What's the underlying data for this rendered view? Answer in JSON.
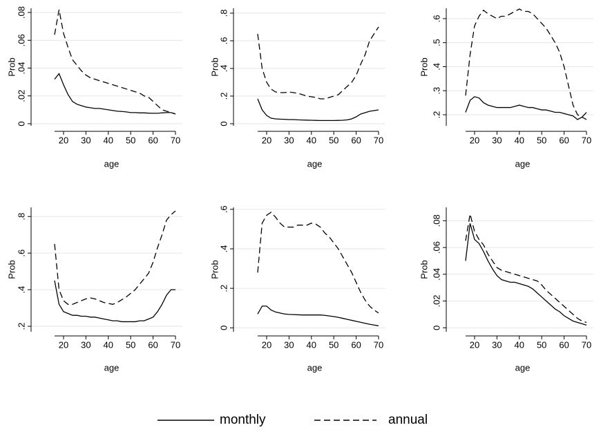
{
  "chart_data": [
    {
      "type": "line",
      "xlabel": "age",
      "ylabel": "Prob",
      "x": [
        16,
        18,
        20,
        22,
        24,
        26,
        28,
        30,
        32,
        34,
        36,
        38,
        40,
        42,
        44,
        46,
        48,
        50,
        52,
        54,
        56,
        58,
        60,
        62,
        64,
        66,
        68,
        70
      ],
      "xlim": [
        16,
        70
      ],
      "xticks": [
        20,
        30,
        40,
        50,
        60,
        70
      ],
      "ylim": [
        -0.0015,
        0.083
      ],
      "yticks": [
        0,
        {
          "value": 0.02,
          "label": ".02"
        },
        {
          "value": 0.04,
          "label": ".04"
        },
        {
          "value": 0.06,
          "label": ".06"
        },
        {
          "value": 0.08,
          "label": ".08"
        }
      ],
      "grid": true,
      "series": [
        {
          "name": "monthly",
          "color": "#000000",
          "dash": "solid",
          "values": [
            0.032,
            0.036,
            0.028,
            0.021,
            0.016,
            0.014,
            0.013,
            0.012,
            0.0115,
            0.011,
            0.011,
            0.0105,
            0.01,
            0.0095,
            0.009,
            0.0088,
            0.0085,
            0.008,
            0.008,
            0.0078,
            0.0078,
            0.0076,
            0.0075,
            0.0075,
            0.0078,
            0.008,
            0.008,
            0.007
          ]
        },
        {
          "name": "annual",
          "color": "#000000",
          "dash": "dashed",
          "values": [
            0.064,
            0.082,
            0.065,
            0.055,
            0.046,
            0.042,
            0.038,
            0.035,
            0.033,
            0.032,
            0.031,
            0.03,
            0.029,
            0.028,
            0.027,
            0.026,
            0.025,
            0.024,
            0.023,
            0.022,
            0.02,
            0.019,
            0.016,
            0.013,
            0.01,
            0.009,
            0.008,
            0.007
          ]
        }
      ]
    },
    {
      "type": "line",
      "xlabel": "age",
      "ylabel": "Prob",
      "x": [
        16,
        18,
        20,
        22,
        24,
        26,
        28,
        30,
        32,
        34,
        36,
        38,
        40,
        42,
        44,
        46,
        48,
        50,
        52,
        54,
        56,
        58,
        60,
        62,
        64,
        66,
        68,
        70
      ],
      "xlim": [
        16,
        70
      ],
      "xticks": [
        20,
        30,
        40,
        50,
        60,
        70
      ],
      "ylim": [
        -0.015,
        0.835
      ],
      "yticks": [
        0,
        {
          "value": 0.2,
          "label": ".2"
        },
        {
          "value": 0.4,
          "label": ".4"
        },
        {
          "value": 0.6,
          "label": ".6"
        },
        {
          "value": 0.8,
          "label": ".8"
        }
      ],
      "grid": true,
      "series": [
        {
          "color": "#000000",
          "dash": "solid",
          "values": [
            0.18,
            0.1,
            0.06,
            0.04,
            0.035,
            0.033,
            0.032,
            0.03,
            0.03,
            0.028,
            0.027,
            0.026,
            0.025,
            0.024,
            0.023,
            0.023,
            0.023,
            0.023,
            0.024,
            0.025,
            0.028,
            0.035,
            0.05,
            0.07,
            0.08,
            0.09,
            0.095,
            0.1
          ]
        },
        {
          "color": "#000000",
          "dash": "dashed",
          "values": [
            0.65,
            0.4,
            0.3,
            0.25,
            0.23,
            0.225,
            0.225,
            0.23,
            0.225,
            0.22,
            0.21,
            0.2,
            0.195,
            0.19,
            0.18,
            0.18,
            0.19,
            0.2,
            0.21,
            0.24,
            0.27,
            0.3,
            0.35,
            0.43,
            0.5,
            0.6,
            0.65,
            0.7
          ]
        }
      ]
    },
    {
      "type": "line",
      "xlabel": "age",
      "ylabel": "Prob",
      "x": [
        16,
        18,
        20,
        22,
        24,
        26,
        28,
        30,
        32,
        34,
        36,
        38,
        40,
        42,
        44,
        46,
        48,
        50,
        52,
        54,
        56,
        58,
        60,
        62,
        64,
        66,
        68,
        70
      ],
      "xlim": [
        16,
        70
      ],
      "xticks": [
        20,
        30,
        40,
        50,
        60,
        70
      ],
      "ylim": [
        0.154,
        0.643
      ],
      "yticks": [
        {
          "value": 0.2,
          "label": ".2"
        },
        {
          "value": 0.3,
          "label": ".3"
        },
        {
          "value": 0.4,
          "label": ".4"
        },
        {
          "value": 0.5,
          "label": ".5"
        },
        {
          "value": 0.6,
          "label": ".6"
        }
      ],
      "grid": true,
      "series": [
        {
          "color": "#000000",
          "dash": "solid",
          "values": [
            0.21,
            0.26,
            0.275,
            0.27,
            0.25,
            0.24,
            0.235,
            0.23,
            0.23,
            0.23,
            0.23,
            0.235,
            0.24,
            0.235,
            0.23,
            0.23,
            0.225,
            0.22,
            0.22,
            0.215,
            0.21,
            0.21,
            0.205,
            0.2,
            0.195,
            0.18,
            0.19,
            0.21
          ]
        },
        {
          "color": "#000000",
          "dash": "dashed",
          "values": [
            0.28,
            0.45,
            0.57,
            0.61,
            0.635,
            0.62,
            0.61,
            0.6,
            0.61,
            0.61,
            0.62,
            0.63,
            0.64,
            0.63,
            0.63,
            0.62,
            0.6,
            0.58,
            0.56,
            0.53,
            0.5,
            0.46,
            0.4,
            0.32,
            0.24,
            0.2,
            0.19,
            0.18
          ]
        }
      ]
    },
    {
      "type": "line",
      "xlabel": "age",
      "ylabel": "Prob",
      "x": [
        16,
        18,
        20,
        22,
        24,
        26,
        28,
        30,
        32,
        34,
        36,
        38,
        40,
        42,
        44,
        46,
        48,
        50,
        52,
        54,
        56,
        58,
        60,
        62,
        64,
        66,
        68,
        70
      ],
      "xlim": [
        16,
        70
      ],
      "xticks": [
        20,
        30,
        40,
        50,
        60,
        70
      ],
      "ylim": [
        0.17,
        0.85
      ],
      "yticks": [
        {
          "value": 0.2,
          "label": ".2"
        },
        {
          "value": 0.4,
          "label": ".4"
        },
        {
          "value": 0.6,
          "label": ".6"
        },
        {
          "value": 0.8,
          "label": ".8"
        }
      ],
      "grid": true,
      "series": [
        {
          "color": "#000000",
          "dash": "solid",
          "values": [
            0.45,
            0.32,
            0.28,
            0.27,
            0.26,
            0.26,
            0.255,
            0.255,
            0.25,
            0.25,
            0.245,
            0.24,
            0.235,
            0.23,
            0.23,
            0.225,
            0.225,
            0.225,
            0.225,
            0.23,
            0.23,
            0.24,
            0.25,
            0.28,
            0.32,
            0.37,
            0.4,
            0.4
          ]
        },
        {
          "color": "#000000",
          "dash": "dashed",
          "values": [
            0.65,
            0.4,
            0.34,
            0.32,
            0.32,
            0.33,
            0.34,
            0.35,
            0.355,
            0.35,
            0.34,
            0.33,
            0.325,
            0.32,
            0.33,
            0.345,
            0.36,
            0.38,
            0.4,
            0.43,
            0.46,
            0.49,
            0.55,
            0.63,
            0.7,
            0.78,
            0.81,
            0.83
          ]
        }
      ]
    },
    {
      "type": "line",
      "xlabel": "age",
      "ylabel": "Prob",
      "x": [
        16,
        18,
        20,
        22,
        24,
        26,
        28,
        30,
        32,
        34,
        36,
        38,
        40,
        42,
        44,
        46,
        48,
        50,
        52,
        54,
        56,
        58,
        60,
        62,
        64,
        66,
        68,
        70
      ],
      "xlim": [
        16,
        70
      ],
      "xticks": [
        20,
        30,
        40,
        50,
        60,
        70
      ],
      "ylim": [
        -0.02,
        0.61
      ],
      "yticks": [
        0,
        {
          "value": 0.2,
          "label": ".2"
        },
        {
          "value": 0.4,
          "label": ".4"
        },
        {
          "value": 0.6,
          "label": ".6"
        }
      ],
      "grid": true,
      "series": [
        {
          "color": "#000000",
          "dash": "solid",
          "values": [
            0.07,
            0.11,
            0.11,
            0.09,
            0.08,
            0.075,
            0.07,
            0.068,
            0.067,
            0.066,
            0.065,
            0.065,
            0.065,
            0.065,
            0.065,
            0.063,
            0.06,
            0.057,
            0.053,
            0.048,
            0.043,
            0.038,
            0.033,
            0.028,
            0.023,
            0.018,
            0.014,
            0.01
          ]
        },
        {
          "color": "#000000",
          "dash": "dashed",
          "values": [
            0.28,
            0.53,
            0.57,
            0.585,
            0.56,
            0.53,
            0.51,
            0.51,
            0.51,
            0.52,
            0.52,
            0.52,
            0.53,
            0.525,
            0.51,
            0.48,
            0.46,
            0.43,
            0.4,
            0.36,
            0.32,
            0.28,
            0.23,
            0.18,
            0.14,
            0.11,
            0.09,
            0.075
          ]
        }
      ]
    },
    {
      "type": "line",
      "xlabel": "age",
      "ylabel": "Prob",
      "x": [
        16,
        18,
        20,
        22,
        24,
        26,
        28,
        30,
        32,
        34,
        36,
        38,
        40,
        42,
        44,
        46,
        48,
        50,
        52,
        54,
        56,
        58,
        60,
        62,
        64,
        66,
        68,
        70
      ],
      "xlim": [
        16,
        70
      ],
      "xticks": [
        20,
        30,
        40,
        50,
        60,
        70
      ],
      "ylim": [
        -0.003,
        0.09
      ],
      "yticks": [
        0,
        {
          "value": 0.02,
          "label": ".02"
        },
        {
          "value": 0.04,
          "label": ".04"
        },
        {
          "value": 0.06,
          "label": ".06"
        },
        {
          "value": 0.08,
          "label": ".08"
        }
      ],
      "grid": true,
      "series": [
        {
          "color": "#000000",
          "dash": "solid",
          "values": [
            0.05,
            0.078,
            0.066,
            0.063,
            0.057,
            0.05,
            0.044,
            0.039,
            0.036,
            0.035,
            0.034,
            0.034,
            0.033,
            0.032,
            0.031,
            0.029,
            0.026,
            0.023,
            0.02,
            0.017,
            0.014,
            0.012,
            0.009,
            0.007,
            0.005,
            0.004,
            0.003,
            0.002
          ]
        },
        {
          "color": "#000000",
          "dash": "dashed",
          "values": [
            0.065,
            0.085,
            0.072,
            0.066,
            0.062,
            0.055,
            0.05,
            0.045,
            0.043,
            0.042,
            0.041,
            0.04,
            0.039,
            0.038,
            0.037,
            0.036,
            0.035,
            0.032,
            0.028,
            0.025,
            0.022,
            0.019,
            0.016,
            0.013,
            0.01,
            0.007,
            0.005,
            0.004
          ]
        }
      ]
    }
  ]
}
